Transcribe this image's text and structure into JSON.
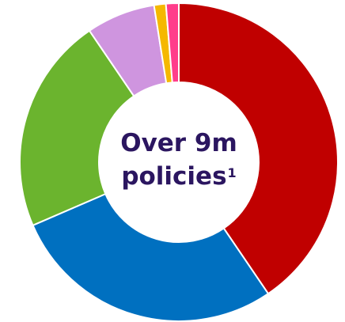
{
  "chart_data": {
    "type": "pie",
    "donut": true,
    "title": "",
    "center_label": {
      "line1": "Over 9m",
      "line2": "policies",
      "footnote": "1"
    },
    "segments": [
      {
        "value": 40.5,
        "color": "#c00000"
      },
      {
        "value": 28.0,
        "color": "#0070c0"
      },
      {
        "value": 22.0,
        "color": "#6bb42e"
      },
      {
        "value": 7.0,
        "color": "#cf95df"
      },
      {
        "value": 1.2,
        "color": "#f5b800"
      },
      {
        "value": 1.3,
        "color": "#ff3d8b"
      }
    ],
    "legend": "none"
  }
}
